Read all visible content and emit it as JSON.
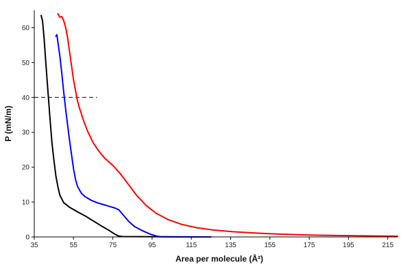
{
  "chart_data": {
    "type": "line",
    "title": "",
    "xlabel": "Area per molecule (Å²)",
    "ylabel": "P (mN/m)",
    "xlim": [
      35,
      220
    ],
    "ylim": [
      0,
      65
    ],
    "x_ticks": [
      35,
      55,
      75,
      95,
      115,
      135,
      155,
      175,
      195,
      215
    ],
    "y_ticks": [
      0,
      10,
      20,
      30,
      40,
      50,
      60
    ],
    "grid": false,
    "legend": "none",
    "series": [
      {
        "color": "#000000",
        "points": [
          [
            38.5,
            63.5
          ],
          [
            39.2,
            62.0
          ],
          [
            40.0,
            57.0
          ],
          [
            41.0,
            49.0
          ],
          [
            42.0,
            41.5
          ],
          [
            43.0,
            34.0
          ],
          [
            44.0,
            27.0
          ],
          [
            45.0,
            22.0
          ],
          [
            46.0,
            17.5
          ],
          [
            47.0,
            14.5
          ],
          [
            48.0,
            12.0
          ],
          [
            50.0,
            9.8
          ],
          [
            53.0,
            8.5
          ],
          [
            57.0,
            7.2
          ],
          [
            61.0,
            6.0
          ],
          [
            65.0,
            4.6
          ],
          [
            69.0,
            3.2
          ],
          [
            73.0,
            1.9
          ],
          [
            76.0,
            0.8
          ],
          [
            78.0,
            0.25
          ],
          [
            80.0,
            0.1
          ],
          [
            100.0,
            0.05
          ],
          [
            120.0,
            0.0
          ]
        ]
      },
      {
        "color": "#0000ff",
        "points": [
          [
            46.0,
            57.5
          ],
          [
            46.5,
            58.0
          ],
          [
            47.0,
            56.0
          ],
          [
            48.0,
            52.0
          ],
          [
            49.0,
            47.0
          ],
          [
            50.0,
            41.5
          ],
          [
            51.0,
            36.5
          ],
          [
            52.0,
            32.0
          ],
          [
            53.0,
            27.5
          ],
          [
            54.0,
            23.5
          ],
          [
            55.0,
            19.5
          ],
          [
            56.0,
            16.5
          ],
          [
            57.0,
            14.5
          ],
          [
            59.0,
            12.5
          ],
          [
            61.0,
            11.5
          ],
          [
            64.0,
            10.5
          ],
          [
            67.0,
            9.8
          ],
          [
            70.0,
            9.3
          ],
          [
            73.0,
            8.8
          ],
          [
            76.0,
            8.3
          ],
          [
            78.0,
            7.8
          ],
          [
            80.0,
            6.5
          ],
          [
            83.0,
            4.5
          ],
          [
            86.0,
            3.0
          ],
          [
            90.0,
            1.8
          ],
          [
            94.0,
            0.8
          ],
          [
            97.0,
            0.3
          ],
          [
            99.0,
            0.05
          ],
          [
            125.0,
            0.0
          ]
        ]
      },
      {
        "color": "#ff0000",
        "points": [
          [
            47.0,
            64.0
          ],
          [
            48.0,
            63.0
          ],
          [
            49.0,
            63.2
          ],
          [
            50.0,
            62.0
          ],
          [
            51.0,
            60.0
          ],
          [
            52.0,
            57.0
          ],
          [
            53.0,
            53.0
          ],
          [
            54.0,
            49.0
          ],
          [
            55.0,
            45.0
          ],
          [
            56.0,
            42.0
          ],
          [
            57.0,
            39.0
          ],
          [
            58.0,
            37.0
          ],
          [
            60.0,
            33.5
          ],
          [
            62.0,
            30.5
          ],
          [
            65.0,
            27.0
          ],
          [
            68.0,
            24.5
          ],
          [
            71.0,
            22.5
          ],
          [
            75.0,
            20.5
          ],
          [
            79.0,
            18.0
          ],
          [
            83.0,
            15.0
          ],
          [
            87.0,
            12.0
          ],
          [
            92.0,
            9.0
          ],
          [
            97.0,
            6.8
          ],
          [
            103.0,
            5.0
          ],
          [
            110.0,
            3.6
          ],
          [
            118.0,
            2.6
          ],
          [
            126.0,
            2.0
          ],
          [
            136.0,
            1.5
          ],
          [
            148.0,
            1.1
          ],
          [
            160.0,
            0.8
          ],
          [
            175.0,
            0.55
          ],
          [
            190.0,
            0.4
          ],
          [
            205.0,
            0.3
          ],
          [
            220.0,
            0.2
          ]
        ]
      }
    ],
    "reference_line": {
      "y": 40,
      "x_start": 35,
      "x_end": 67,
      "style": "dashed",
      "color": "#000000"
    }
  }
}
